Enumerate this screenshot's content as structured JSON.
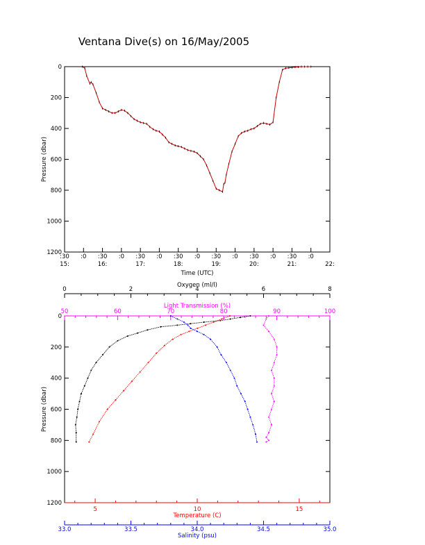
{
  "title": "Ventana Dive(s) on 16/May/2005",
  "colors": {
    "axis": "#000000",
    "depth_trace": "#cc0000",
    "oxygen": "#000000",
    "light": "#ff00ff",
    "temperature": "#ff0000",
    "salinity": "#0000ff"
  },
  "chart_data": [
    {
      "type": "line",
      "xlabel": "Time (UTC)",
      "ylabel": "Pressure (dbar)",
      "ylim": [
        1200,
        0
      ],
      "y_ticks": [
        "0",
        "200",
        "400",
        "600",
        "800",
        "1000",
        "1200"
      ],
      "x_ticks_minutes": [
        ":30",
        ":0",
        ":30",
        ":0",
        ":30",
        ":0",
        ":30",
        ":0",
        ":30",
        ":0",
        ":30",
        ":0",
        ":30",
        ":0"
      ],
      "x_ticks_hours": [
        "15:",
        "16:",
        "17:",
        "18:",
        "19:",
        "20:",
        "21:",
        "22:"
      ],
      "series": [
        {
          "time": [
            "15:58",
            "16:02",
            "16:05",
            "16:10",
            "16:12",
            "16:15",
            "16:20",
            "16:25",
            "16:30",
            "16:35",
            "16:40",
            "16:45",
            "16:50",
            "16:55",
            "17:00",
            "17:05",
            "17:10",
            "17:15",
            "17:20",
            "17:25",
            "17:30",
            "17:35",
            "17:40",
            "17:45",
            "17:50",
            "17:55",
            "18:00",
            "18:05",
            "18:10",
            "18:15",
            "18:20",
            "18:25",
            "18:30",
            "18:35",
            "18:40",
            "18:45",
            "18:50",
            "18:55",
            "19:00",
            "19:05",
            "19:10",
            "19:15",
            "19:20",
            "19:25",
            "19:30",
            "19:35",
            "19:40",
            "19:42",
            "19:44",
            "19:46",
            "19:50",
            "19:55",
            "20:00",
            "20:05",
            "20:10",
            "20:15",
            "20:20",
            "20:25",
            "20:30",
            "20:35",
            "20:40",
            "20:45",
            "20:50",
            "20:55",
            "21:00",
            "21:05",
            "21:10",
            "21:15",
            "21:20",
            "21:25",
            "21:30",
            "21:35",
            "21:40",
            "21:45",
            "21:50",
            "21:55",
            "22:00"
          ],
          "pressure": [
            0,
            10,
            60,
            110,
            100,
            115,
            170,
            230,
            270,
            280,
            290,
            300,
            300,
            290,
            280,
            285,
            300,
            320,
            340,
            350,
            360,
            365,
            370,
            390,
            405,
            415,
            420,
            440,
            460,
            490,
            500,
            510,
            515,
            520,
            530,
            540,
            545,
            550,
            560,
            580,
            600,
            640,
            690,
            740,
            790,
            800,
            810,
            760,
            750,
            700,
            630,
            550,
            500,
            450,
            430,
            420,
            415,
            405,
            400,
            385,
            370,
            365,
            370,
            375,
            360,
            200,
            100,
            20,
            10,
            8,
            5,
            3,
            2,
            0,
            0,
            0,
            0
          ]
        }
      ]
    },
    {
      "type": "scatter",
      "ylabel": "Pressure (dbar)",
      "ylim": [
        1200,
        0
      ],
      "y_ticks": [
        "0",
        "200",
        "400",
        "600",
        "800",
        "1000",
        "1200"
      ],
      "axes": [
        {
          "name": "Oxygen (ml/l)",
          "range": [
            0,
            8
          ],
          "ticks": [
            "0",
            "2",
            "4",
            "6",
            "8"
          ]
        },
        {
          "name": "Light Transmission (%)",
          "range": [
            50,
            100
          ],
          "ticks": [
            "50",
            "60",
            "70",
            "80",
            "90",
            "100"
          ]
        },
        {
          "name": "Temperature (C)",
          "range": [
            3.5,
            16.5
          ],
          "ticks": [
            "5",
            "10",
            "15"
          ]
        },
        {
          "name": "Salinity (psu)",
          "range": [
            33.0,
            35.0
          ],
          "ticks": [
            "33.0",
            "33.5",
            "34.0",
            "34.5",
            "35.0"
          ]
        }
      ],
      "series": [
        {
          "name": "Oxygen (ml/l)",
          "x": [
            5.6,
            5.3,
            5.0,
            4.7,
            4.2,
            3.8,
            3.4,
            2.9,
            2.5,
            2.2,
            1.9,
            1.6,
            1.35,
            1.15,
            0.95,
            0.8,
            0.7,
            0.6,
            0.5,
            0.45,
            0.4,
            0.37,
            0.33,
            0.35,
            0.35
          ],
          "pressure": [
            0,
            10,
            20,
            30,
            40,
            50,
            60,
            70,
            90,
            110,
            130,
            160,
            200,
            250,
            300,
            350,
            400,
            450,
            500,
            550,
            600,
            650,
            700,
            750,
            810
          ]
        },
        {
          "name": "Light Transmission (%)",
          "x": [
            88.5,
            88.0,
            87.5,
            88.5,
            89.5,
            90.0,
            90.0,
            89.5,
            89.0,
            89.5,
            89.5,
            89.0,
            89.5,
            89.0,
            88.5,
            89.0,
            88.5,
            88.0,
            88.5,
            88.0
          ],
          "pressure": [
            0,
            20,
            60,
            100,
            150,
            200,
            250,
            300,
            350,
            400,
            450,
            500,
            550,
            600,
            650,
            700,
            750,
            780,
            800,
            810
          ]
        },
        {
          "name": "Temperature (C)",
          "x": [
            11.6,
            11.2,
            10.8,
            10.4,
            10.0,
            9.6,
            9.2,
            8.8,
            8.4,
            8.0,
            7.6,
            7.2,
            6.8,
            6.4,
            6.0,
            5.6,
            5.2,
            4.9,
            4.7
          ],
          "pressure": [
            0,
            20,
            40,
            60,
            80,
            100,
            120,
            150,
            190,
            240,
            300,
            360,
            420,
            480,
            540,
            600,
            680,
            760,
            810
          ]
        },
        {
          "name": "Salinity (psu)",
          "x": [
            33.8,
            33.85,
            33.9,
            33.93,
            33.95,
            34.0,
            34.05,
            34.1,
            34.15,
            34.18,
            34.22,
            34.25,
            34.28,
            34.3,
            34.33,
            34.36,
            34.38,
            34.4,
            34.42,
            34.44,
            34.45
          ],
          "pressure": [
            0,
            20,
            40,
            60,
            80,
            100,
            120,
            150,
            200,
            250,
            300,
            350,
            400,
            450,
            500,
            550,
            600,
            650,
            700,
            760,
            810
          ]
        }
      ]
    }
  ]
}
